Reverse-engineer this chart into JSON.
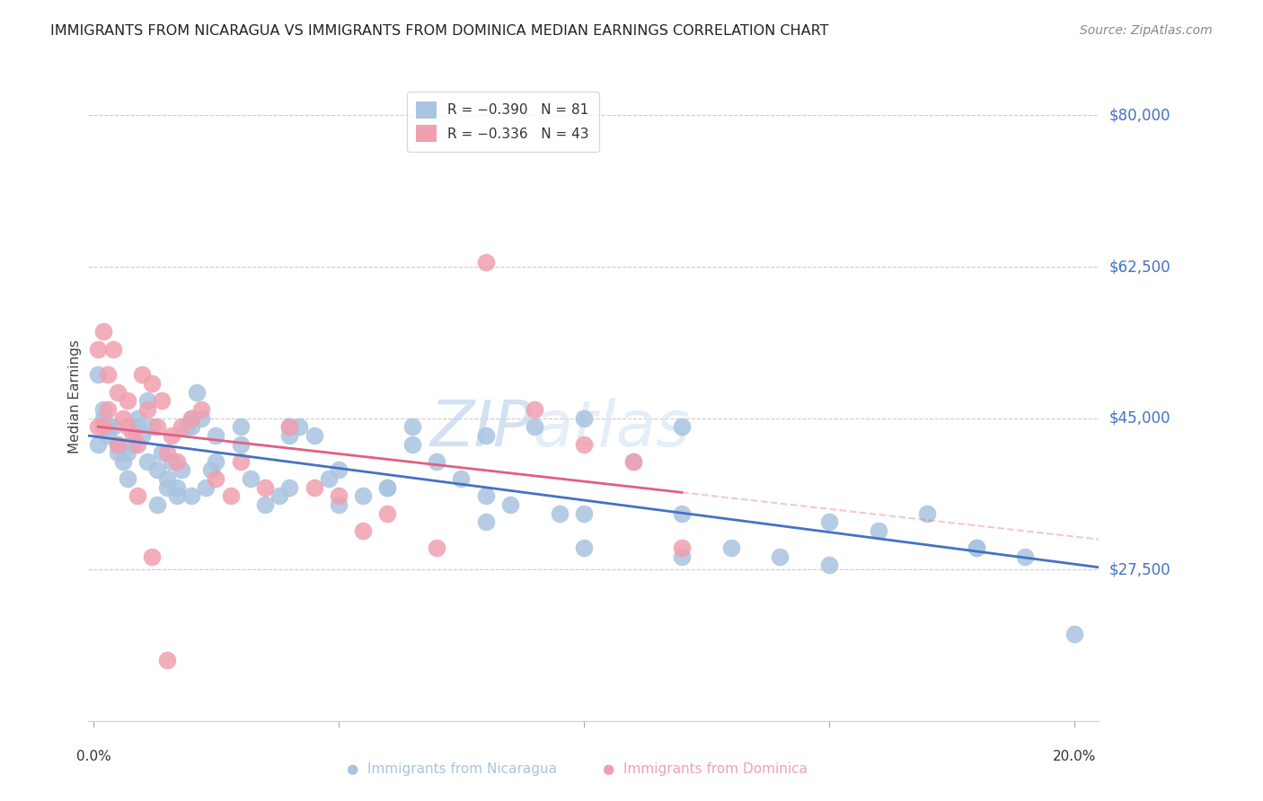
{
  "title": "IMMIGRANTS FROM NICARAGUA VS IMMIGRANTS FROM DOMINICA MEDIAN EARNINGS CORRELATION CHART",
  "source": "Source: ZipAtlas.com",
  "ylabel": "Median Earnings",
  "ytick_labels": [
    "$27,500",
    "$45,000",
    "$62,500",
    "$80,000"
  ],
  "ytick_values": [
    27500,
    45000,
    62500,
    80000
  ],
  "ymin": 10000,
  "ymax": 85000,
  "xmin": -0.001,
  "xmax": 0.205,
  "nicaragua_color": "#a8c4e0",
  "dominica_color": "#f0a0b0",
  "nicaragua_line_color": "#4472c4",
  "dominica_line_color": "#e06080",
  "watermark_zip": "ZIP",
  "watermark_atlas": "atlas",
  "nicaragua_x": [
    0.001,
    0.002,
    0.003,
    0.004,
    0.005,
    0.006,
    0.007,
    0.008,
    0.009,
    0.01,
    0.011,
    0.012,
    0.013,
    0.014,
    0.015,
    0.016,
    0.017,
    0.018,
    0.019,
    0.02,
    0.021,
    0.022,
    0.023,
    0.024,
    0.025,
    0.03,
    0.032,
    0.035,
    0.038,
    0.04,
    0.042,
    0.045,
    0.048,
    0.05,
    0.055,
    0.06,
    0.065,
    0.07,
    0.075,
    0.08,
    0.085,
    0.09,
    0.095,
    0.1,
    0.11,
    0.12,
    0.13,
    0.14,
    0.15,
    0.16,
    0.17,
    0.18,
    0.19,
    0.001,
    0.002,
    0.003,
    0.005,
    0.007,
    0.009,
    0.011,
    0.013,
    0.015,
    0.017,
    0.02,
    0.025,
    0.03,
    0.04,
    0.05,
    0.065,
    0.08,
    0.1,
    0.12,
    0.15,
    0.18,
    0.2,
    0.02,
    0.04,
    0.06,
    0.08,
    0.1,
    0.12
  ],
  "nicaragua_y": [
    42000,
    45000,
    43000,
    44000,
    41000,
    40000,
    38000,
    42000,
    45000,
    43000,
    47000,
    44000,
    39000,
    41000,
    38000,
    40000,
    37000,
    39000,
    44000,
    36000,
    48000,
    45000,
    37000,
    39000,
    43000,
    44000,
    38000,
    35000,
    36000,
    37000,
    44000,
    43000,
    38000,
    39000,
    36000,
    37000,
    44000,
    40000,
    38000,
    36000,
    35000,
    44000,
    34000,
    45000,
    40000,
    34000,
    30000,
    29000,
    28000,
    32000,
    34000,
    30000,
    29000,
    50000,
    46000,
    44000,
    42000,
    41000,
    44000,
    40000,
    35000,
    37000,
    36000,
    44000,
    40000,
    42000,
    43000,
    35000,
    42000,
    43000,
    30000,
    44000,
    33000,
    30000,
    20000,
    45000,
    44000,
    37000,
    33000,
    34000,
    29000
  ],
  "dominica_x": [
    0.001,
    0.002,
    0.003,
    0.004,
    0.005,
    0.006,
    0.007,
    0.008,
    0.009,
    0.01,
    0.011,
    0.012,
    0.013,
    0.014,
    0.015,
    0.016,
    0.017,
    0.018,
    0.02,
    0.022,
    0.025,
    0.028,
    0.03,
    0.035,
    0.04,
    0.045,
    0.05,
    0.055,
    0.06,
    0.07,
    0.08,
    0.09,
    0.1,
    0.11,
    0.12,
    0.001,
    0.002,
    0.003,
    0.005,
    0.007,
    0.009,
    0.012,
    0.015
  ],
  "dominica_y": [
    44000,
    55000,
    50000,
    53000,
    48000,
    45000,
    47000,
    43000,
    42000,
    50000,
    46000,
    49000,
    44000,
    47000,
    41000,
    43000,
    40000,
    44000,
    45000,
    46000,
    38000,
    36000,
    40000,
    37000,
    44000,
    37000,
    36000,
    32000,
    34000,
    30000,
    63000,
    46000,
    42000,
    40000,
    30000,
    53000,
    44000,
    46000,
    42000,
    44000,
    36000,
    29000,
    17000
  ]
}
